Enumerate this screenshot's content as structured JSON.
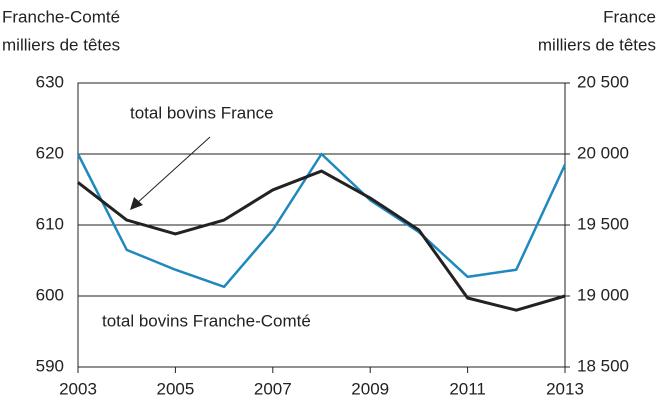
{
  "chart_data": {
    "type": "line",
    "y_axis_title": [
      "Franche-Comté",
      "milliers de têtes"
    ],
    "y2_axis_title": [
      "France",
      "milliers de têtes"
    ],
    "annotations": [
      "total bovins France",
      "total bovins Franche-Comté"
    ],
    "x": [
      2003,
      2004,
      2005,
      2006,
      2007,
      2008,
      2009,
      2010,
      2011,
      2012,
      2013
    ],
    "xlim": [
      2003,
      2013
    ],
    "xticks": [
      2003,
      2005,
      2007,
      2009,
      2011,
      2013
    ],
    "ylim": [
      590,
      630
    ],
    "yticks": [
      590,
      600,
      610,
      620,
      630
    ],
    "y2lim": [
      18500,
      20500
    ],
    "y2ticks": [
      {
        "value": 18500,
        "label": "18 500"
      },
      {
        "value": 19000,
        "label": "19 000"
      },
      {
        "value": 19500,
        "label": "19 500"
      },
      {
        "value": 20000,
        "label": "20 000"
      },
      {
        "value": 20500,
        "label": "20 500"
      }
    ],
    "grid": true,
    "series": [
      {
        "name": "total bovins Franche-Comté",
        "color": "#1f88bd",
        "values": [
          620,
          606.5,
          603.7,
          601.3,
          609.3,
          620,
          613.5,
          609,
          602.7,
          603.7,
          618.5
        ]
      },
      {
        "name": "total bovins France",
        "color": "#222222",
        "axis": "y2",
        "values": [
          19800,
          19535,
          19437,
          19535,
          19747,
          19880,
          19690,
          19465,
          18986,
          18900,
          19000
        ]
      }
    ]
  }
}
